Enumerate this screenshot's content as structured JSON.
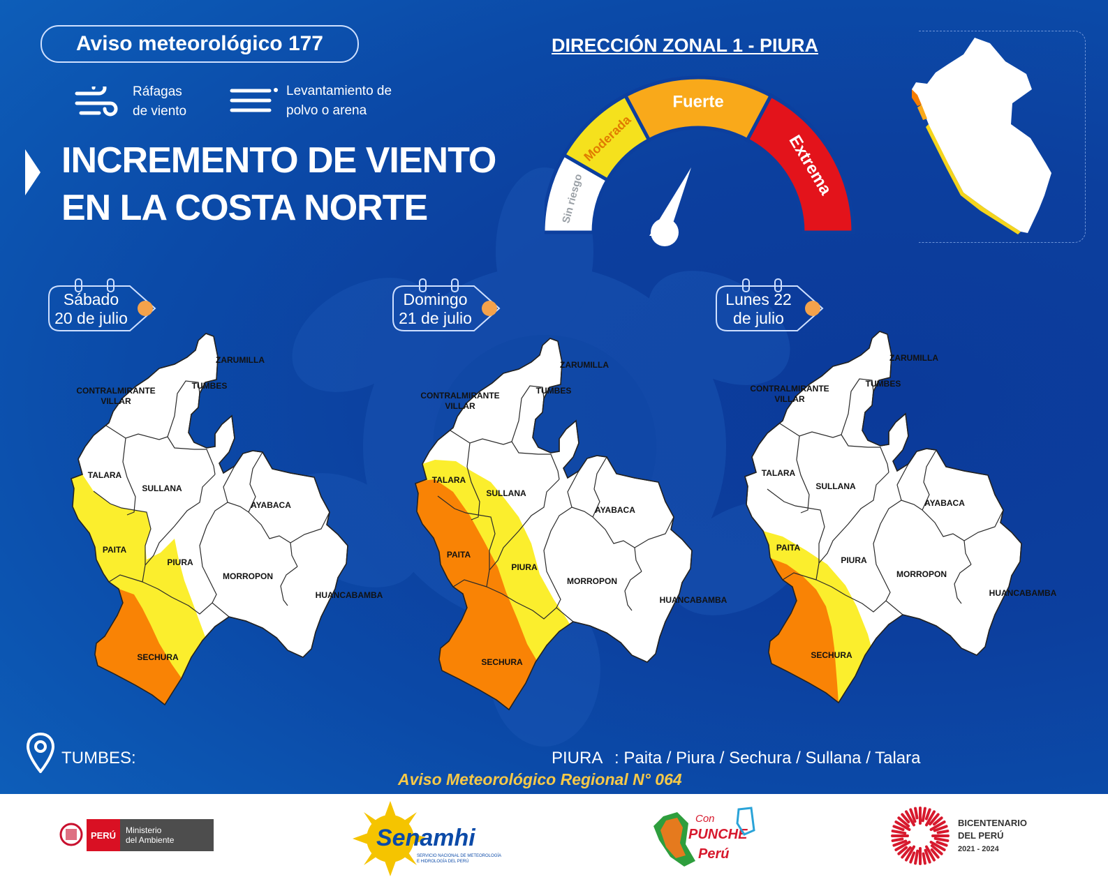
{
  "header": {
    "title": "Aviso meteorológico 177",
    "zone": "DIRECCIÓN ZONAL 1 - PIURA"
  },
  "legend": [
    {
      "icon": "wind-gust-icon",
      "line1": "Ráfagas",
      "line2": "de viento"
    },
    {
      "icon": "dust-lines-icon",
      "line1": "Levantamiento de",
      "line2": "polvo o arena"
    }
  ],
  "headline": {
    "line1": "INCREMENTO DE VIENTO",
    "line2": "EN LA COSTA NORTE"
  },
  "gauge": {
    "levels": [
      "Sin riesgo",
      "Moderada",
      "Fuerte",
      "Extrema"
    ],
    "pointer_level": "Fuerte",
    "colors": {
      "sin_riesgo": "#ffffff",
      "moderada": "#f5e11d",
      "fuerte": "#f9a91a",
      "extrema": "#e3131b"
    }
  },
  "days": [
    {
      "line1": "Sábado",
      "line2": "20 de julio"
    },
    {
      "line1": "Domingo",
      "line2": "21 de julio"
    },
    {
      "line1": "Lunes 22",
      "line2": "de julio"
    }
  ],
  "provinces": {
    "zarumilla": "ZARUMILLA",
    "tumbes": "TUMBES",
    "contralmirante1": "CONTRALMIRANTE",
    "contralmirante2": "VILLAR",
    "talara": "TALARA",
    "sullana": "SULLANA",
    "ayabaca": "AYABACA",
    "paita": "PAITA",
    "piura": "PIURA",
    "morropon": "MORROPON",
    "huancabamba": "HUANCABAMBA",
    "sechura": "SECHURA"
  },
  "footer": {
    "tumbes_label": "TUMBES:",
    "piura_label": "PIURA",
    "piura_list": ": Paita / Piura / Sechura / Sullana / Talara",
    "regional": "Aviso Meteorológico Regional N° 064"
  },
  "logos": {
    "peru": "PERÚ",
    "ministerio1": "Ministerio",
    "ministerio2": "del Ambiente",
    "senamhi": "Senamhi",
    "senamhi_sub1": "SERVICIO NACIONAL DE METEOROLOGÍA",
    "senamhi_sub2": "E HIDROLOGÍA DEL PERÚ",
    "punche1": "Con",
    "punche2": "PUNCHE",
    "punche3": "Perú",
    "bicentenario1": "BICENTENARIO",
    "bicentenario2": "DEL PERÚ",
    "bicentenario3": "2021 - 2024"
  }
}
